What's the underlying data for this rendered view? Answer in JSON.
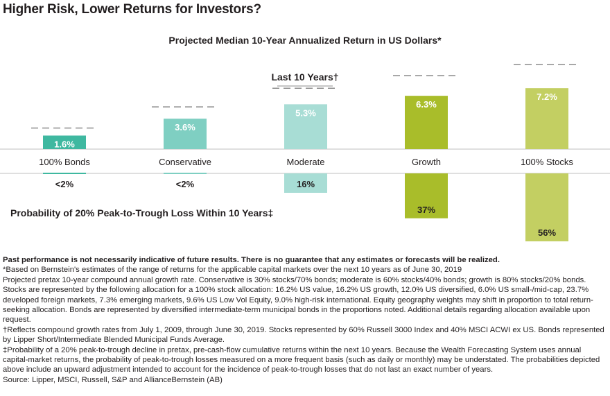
{
  "page": {
    "title": "Higher Risk, Lower Returns for Investors?"
  },
  "chart_data": {
    "type": "bar",
    "title": "Projected Median 10-Year Annualized Return in US Dollars*",
    "secondary_title": "Probability of 20% Peak-to-Trough Loss Within 10 Years‡",
    "reference_label": "Last 10 Years†",
    "categories": [
      "100% Bonds",
      "Conservative",
      "Moderate",
      "Growth",
      "100% Stocks"
    ],
    "colors": [
      "#3fb8a0",
      "#7fcfc2",
      "#a8ddd5",
      "#a9bd2a",
      "#c3cf62"
    ],
    "series": [
      {
        "name": "Projected Median 10-Year Annualized Return",
        "values": [
          1.6,
          3.6,
          5.3,
          6.3,
          7.2
        ],
        "labels": [
          "1.6%",
          "3.6%",
          "5.3%",
          "6.3%",
          "7.2%"
        ]
      },
      {
        "name": "Probability of 20% Peak-to-Trough Loss",
        "values": [
          2,
          2,
          16,
          37,
          56
        ],
        "labels": [
          "<2%",
          "<2%",
          "16%",
          "37%",
          "56%"
        ]
      }
    ],
    "last_10_years_reference": {
      "note": "dashed reference lines"
    }
  },
  "notes": {
    "disclaimer": "Past performance is not necessarily indicative of future results. There is no guarantee that any estimates or forecasts will be realized.",
    "lines": [
      "*Based on Bernstein's estimates of the range of returns for the applicable capital markets over the next 10 years as of June 30, 2019",
      "Projected pretax 10-year compound annual growth rate. Conservative is 30% stocks/70% bonds; moderate is 60% stocks/40% bonds; growth is 80% stocks/20% bonds. Stocks are represented by the following allocation for a 100% stock allocation: 16.2% US value, 16.2% US growth, 12.0% US diversified, 6.0% US small-/mid-cap, 23.7% developed foreign markets, 7.3% emerging markets, 9.6% US Low Vol Equity, 9.0% high-risk international. Equity geography weights may shift in proportion to total return-seeking allocation. Bonds are represented by diversified intermediate-term municipal bonds in the proportions noted. Additional details regarding allocation available upon request.",
      "†Reflects compound growth rates from July 1, 2009, through June 30, 2019. Stocks represented by 60% Russell 3000 Index and 40% MSCI ACWI ex US. Bonds represented by Lipper Short/Intermediate Blended Municipal Funds Average.",
      "‡Probability of a 20% peak-to-trough decline in pretax, pre-cash-flow cumulative returns within the next 10 years. Because the Wealth Forecasting System uses annual capital-market returns, the probability of peak-to-trough losses measured on a more frequent basis (such as daily or monthly) may be understated. The probabilities depicted above include an upward adjustment intended to account for the incidence of peak-to-trough losses that do not last an exact number of years.",
      "Source: Lipper, MSCI, Russell, S&P and AllianceBernstein (AB)"
    ]
  }
}
